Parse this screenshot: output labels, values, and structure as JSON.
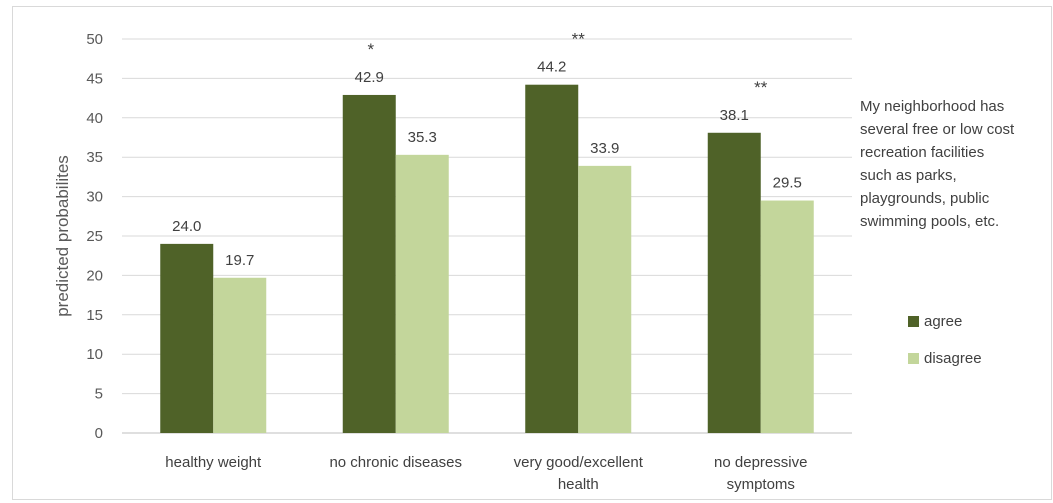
{
  "chart_data": {
    "type": "bar",
    "ylabel": "predicted probabilites",
    "ylim": [
      0,
      50
    ],
    "yticks": [
      0,
      5,
      10,
      15,
      20,
      25,
      30,
      35,
      40,
      45,
      50
    ],
    "categories": [
      [
        "healthy weight"
      ],
      [
        "no chronic diseases"
      ],
      [
        "very good/excellent",
        "health"
      ],
      [
        "no depressive",
        "symptoms"
      ]
    ],
    "series": [
      {
        "name": "agree",
        "color": "#4f6228",
        "values": [
          24.0,
          42.9,
          44.2,
          38.1
        ]
      },
      {
        "name": "disagree",
        "color": "#c3d69b",
        "values": [
          19.7,
          35.3,
          33.9,
          29.5
        ]
      }
    ],
    "data_labels": [
      [
        "24.0",
        "19.7"
      ],
      [
        "42.9",
        "35.3"
      ],
      [
        "44.2",
        "33.9"
      ],
      [
        "38.1",
        "29.5"
      ]
    ],
    "significance": [
      "",
      "*",
      "**",
      "**"
    ],
    "legend_title": "My neighborhood has several free or low cost recreation facilities such as parks, playgrounds, public swimming pools, etc.",
    "legend_title_lines": [
      "My neighborhood has",
      "several free or low cost",
      "recreation facilities",
      "such as parks,",
      "playgrounds, public",
      "swimming pools, etc."
    ],
    "legend_position": "right",
    "grid": true
  }
}
